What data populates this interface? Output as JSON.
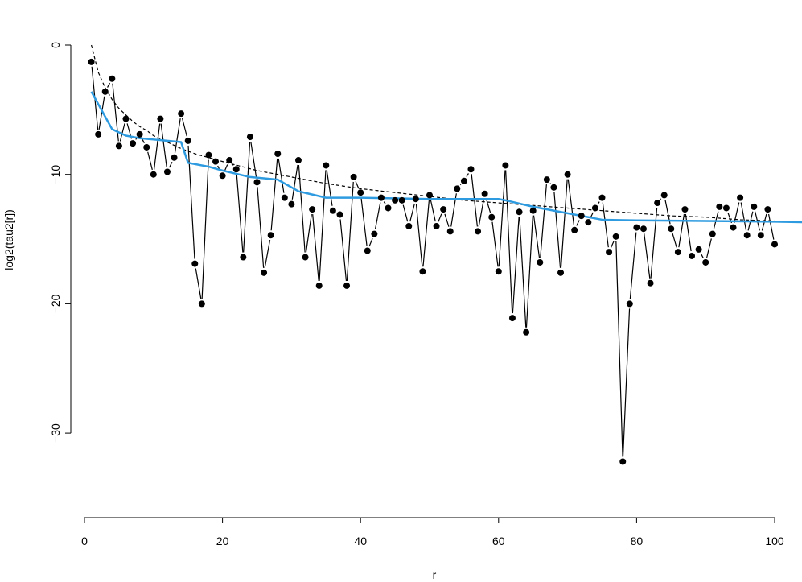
{
  "chart_data": {
    "type": "scatter",
    "title": "",
    "xlabel": "r",
    "ylabel": "log2(tau2[r])",
    "xlim": [
      1,
      105
    ],
    "ylim": [
      -36,
      0
    ],
    "x_ticks": [
      0,
      20,
      40,
      60,
      80,
      100
    ],
    "y_ticks": [
      0,
      -10,
      -20,
      -30
    ],
    "x_tick_labels": [
      "0",
      "20",
      "40",
      "60",
      "80",
      "100"
    ],
    "y_tick_labels": [
      "0",
      "−10",
      "−20",
      "−30"
    ],
    "grid": false,
    "legend": "none",
    "series": [
      {
        "style": "points connected by thin black line",
        "color": "#000000",
        "x": [
          1,
          2,
          3,
          4,
          5,
          6,
          7,
          8,
          9,
          10,
          11,
          12,
          13,
          14,
          15,
          16,
          17,
          18,
          19,
          20,
          21,
          22,
          23,
          24,
          25,
          26,
          27,
          28,
          29,
          30,
          31,
          32,
          33,
          34,
          35,
          36,
          37,
          38,
          39,
          40,
          41,
          42,
          43,
          44,
          45,
          46,
          47,
          48,
          49,
          50,
          51,
          52,
          53,
          54,
          55,
          56,
          57,
          58,
          59,
          60,
          61,
          62,
          63,
          64,
          65,
          66,
          67,
          68,
          69,
          70,
          71,
          72,
          73,
          74,
          75,
          76,
          77,
          78,
          79,
          80,
          81,
          82,
          83,
          84,
          85,
          86,
          87,
          88,
          89,
          90,
          91,
          92,
          93,
          94,
          95,
          96,
          97,
          98,
          99,
          100
        ],
        "y": [
          -1.3,
          -6.9,
          -3.6,
          -2.6,
          -7.8,
          -5.7,
          -7.6,
          -6.9,
          -7.9,
          -10.0,
          -5.7,
          -9.8,
          -8.7,
          -5.3,
          -7.4,
          -16.9,
          -20.0,
          -8.5,
          -9.0,
          -10.1,
          -8.9,
          -9.6,
          -16.4,
          -7.1,
          -10.6,
          -17.6,
          -14.7,
          -8.4,
          -11.8,
          -12.3,
          -8.9,
          -16.4,
          -12.7,
          -18.6,
          -9.3,
          -12.8,
          -13.1,
          -18.6,
          -10.2,
          -11.4,
          -15.9,
          -14.6,
          -11.8,
          -12.6,
          -12.0,
          -12.0,
          -14.0,
          -11.9,
          -17.5,
          -11.6,
          -14.0,
          -12.7,
          -14.4,
          -11.1,
          -10.5,
          -9.6,
          -14.4,
          -11.5,
          -13.3,
          -17.5,
          -9.3,
          -21.1,
          -12.9,
          -22.2,
          -12.8,
          -16.8,
          -10.4,
          -11.0,
          -17.6,
          -10.0,
          -14.3,
          -13.2,
          -13.7,
          -12.6,
          -11.8,
          -16.0,
          -14.8,
          -32.2,
          -20.0,
          -14.1,
          -14.2,
          -18.4,
          -12.2,
          -11.6,
          -14.2,
          -16.0,
          -12.7,
          -16.3,
          -15.8,
          -16.8,
          -14.6,
          -12.5,
          -12.6,
          -14.1,
          -11.8,
          -14.7,
          -12.5,
          -14.7,
          -12.7,
          -15.4
        ]
      },
      {
        "style": "dashed black curve",
        "color": "#000000",
        "x": [
          1,
          2,
          3,
          4,
          5,
          6,
          7,
          8,
          9,
          10,
          12,
          14,
          16,
          18,
          20,
          25,
          30,
          35,
          40,
          45,
          50,
          55,
          60,
          65,
          70,
          75,
          80,
          85,
          90,
          95,
          100
        ],
        "y": [
          0.0,
          -2.1,
          -3.3,
          -4.2,
          -4.9,
          -5.4,
          -5.9,
          -6.3,
          -6.6,
          -7.0,
          -7.5,
          -8.0,
          -8.4,
          -8.7,
          -9.0,
          -9.7,
          -10.2,
          -10.7,
          -11.1,
          -11.4,
          -11.7,
          -12.0,
          -12.2,
          -12.4,
          -12.6,
          -12.8,
          -13.0,
          -13.2,
          -13.3,
          -13.5,
          -13.6
        ]
      },
      {
        "style": "solid blue line",
        "color": "#2E9BE0",
        "x": [
          1,
          4,
          6,
          8,
          10,
          12,
          14,
          15,
          18,
          20,
          24,
          28,
          31,
          35,
          40,
          50,
          60,
          61,
          65,
          70,
          75,
          80,
          90,
          100,
          105
        ],
        "y": [
          -3.6,
          -6.5,
          -7.0,
          -7.2,
          -7.3,
          -7.4,
          -7.5,
          -9.1,
          -9.4,
          -9.7,
          -10.2,
          -10.4,
          -11.3,
          -11.8,
          -11.8,
          -11.9,
          -11.9,
          -12.0,
          -12.5,
          -13.0,
          -13.5,
          -13.55,
          -13.6,
          -13.65,
          -13.7
        ]
      }
    ]
  }
}
